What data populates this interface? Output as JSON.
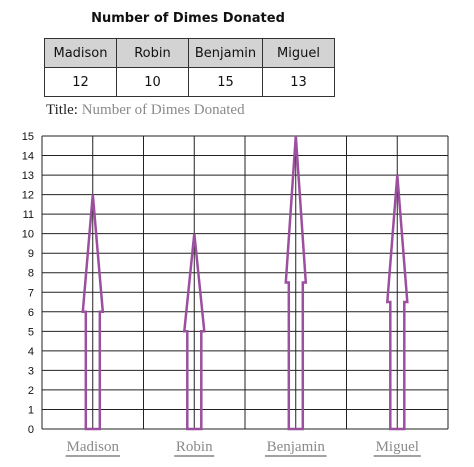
{
  "table": {
    "title": "Number of Dimes Donated",
    "headers": [
      "Madison",
      "Robin",
      "Benjamin",
      "Miguel"
    ],
    "values": [
      "12",
      "10",
      "15",
      "13"
    ]
  },
  "graph_title": {
    "label": "Title:",
    "value": "Number of Dimes Donated"
  },
  "chart_data": {
    "type": "bar",
    "categories": [
      "Madison",
      "Robin",
      "Benjamin",
      "Miguel"
    ],
    "values": [
      12,
      10,
      15,
      13
    ],
    "ylim": [
      0,
      15
    ],
    "yticks": [
      0,
      1,
      2,
      3,
      4,
      5,
      6,
      7,
      8,
      9,
      10,
      11,
      12,
      13,
      14,
      15
    ],
    "mark": "arrow",
    "grid": true,
    "colors": {
      "mark": "#9b4f9e",
      "grid": "#222222",
      "xlabel": "#8a8a8a"
    }
  }
}
